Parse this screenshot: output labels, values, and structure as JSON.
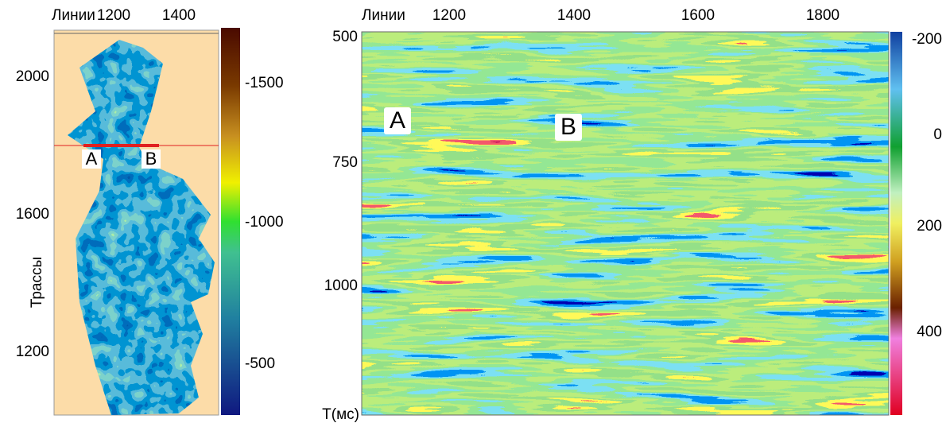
{
  "left_panel": {
    "x_axis_label": "Линии",
    "x_ticks": [
      1200,
      1400
    ],
    "y_axis_label": "Трассы",
    "y_ticks": [
      2000,
      1600,
      1200
    ],
    "markers": [
      "A",
      "B"
    ],
    "colorbar_ticks": [
      -1500,
      -1000,
      -500
    ]
  },
  "right_panel": {
    "x_axis_label": "Линии",
    "x_ticks": [
      1200,
      1400,
      1600,
      1800
    ],
    "y_axis_label": "T(мс)",
    "y_ticks": [
      500,
      750,
      1000
    ],
    "markers": [
      "A",
      "B"
    ],
    "colorbar_ticks": [
      -200,
      0,
      200,
      400
    ]
  }
}
